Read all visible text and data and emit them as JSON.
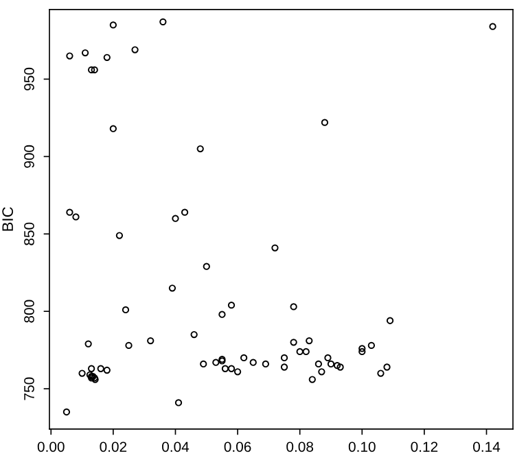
{
  "chart_data": {
    "type": "scatter",
    "ylabel": "BIC",
    "xlim": [
      -0.0005,
      0.1485
    ],
    "ylim": [
      724,
      995
    ],
    "xticks": [
      {
        "value": 0,
        "label": "0.00"
      },
      {
        "value": 0.02,
        "label": "0.02"
      },
      {
        "value": 0.04,
        "label": "0.04"
      },
      {
        "value": 0.06,
        "label": "0.06"
      },
      {
        "value": 0.08,
        "label": "0.08"
      },
      {
        "value": 0.1,
        "label": "0.10"
      },
      {
        "value": 0.12,
        "label": "0.12"
      },
      {
        "value": 0.14,
        "label": "0.14"
      }
    ],
    "yticks": [
      750,
      800,
      850,
      900,
      950
    ],
    "marker": "circle",
    "grid": false,
    "series": [
      {
        "color": "#000000",
        "x": [
          0.006,
          0.02,
          0.011,
          0.018,
          0.013,
          0.014,
          0.027,
          0.036,
          0.02,
          0.048,
          0.006,
          0.008,
          0.04,
          0.043,
          0.022,
          0.142,
          0.088,
          0.05,
          0.039,
          0.024,
          0.058,
          0.055,
          0.046,
          0.032,
          0.025,
          0.012,
          0.049,
          0.053,
          0.055,
          0.055,
          0.062,
          0.065,
          0.056,
          0.058,
          0.06,
          0.041,
          0.005,
          0.01,
          0.013,
          0.016,
          0.018,
          0.013,
          0.014,
          0.0125,
          0.0135,
          0.0142,
          0.013,
          0.072,
          0.078,
          0.109,
          0.078,
          0.083,
          0.08,
          0.082,
          0.103,
          0.1,
          0.1,
          0.075,
          0.069,
          0.075,
          0.086,
          0.089,
          0.09,
          0.087,
          0.092,
          0.093,
          0.084,
          0.106,
          0.108
        ],
        "values": [
          965,
          985,
          967,
          964,
          956,
          956,
          969,
          987,
          918,
          905,
          864,
          861,
          860,
          864,
          849,
          984,
          922,
          829,
          815,
          801,
          804,
          798,
          785,
          781,
          778,
          779,
          766,
          767,
          769,
          768,
          770,
          767,
          763,
          763,
          761,
          741,
          735,
          760,
          763,
          763,
          762,
          758,
          757,
          759,
          758,
          756,
          757,
          841,
          803,
          794,
          780,
          781,
          774,
          774,
          778,
          776,
          774,
          770,
          766,
          764,
          766,
          770,
          766,
          761,
          765,
          764,
          756,
          760,
          764
        ]
      }
    ]
  }
}
